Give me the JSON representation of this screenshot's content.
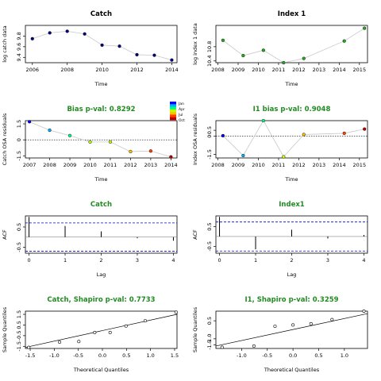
{
  "colors": {
    "green": "#228b22",
    "blue": "#0000cd",
    "dot_navy": "#00008b",
    "dot_green": "#22aa22",
    "legend": [
      "#0000ff",
      "#00b0ff",
      "#00ff80",
      "#c0ff00",
      "#ffc000",
      "#ff4000",
      "#c00000"
    ]
  },
  "legend_labels": [
    "Jan",
    "Apr",
    "Jul",
    "Oct"
  ],
  "chart_data": [
    {
      "id": "catch",
      "type": "line",
      "title": "Catch",
      "title_color": "black",
      "xlabel": "Time",
      "ylabel": "log catch data",
      "xlim": [
        2005.6,
        2014.3
      ],
      "ylim": [
        9.3,
        10.0
      ],
      "xticks": [
        2006,
        2008,
        2010,
        2012,
        2014
      ],
      "xtick_labels": [
        "2006",
        "2008",
        "2010",
        "2012",
        "2014"
      ],
      "yticks": [
        9.4,
        9.6,
        9.8
      ],
      "ytick_labels": [
        "9.4",
        "9.6",
        "9.8"
      ],
      "x": [
        2006,
        2007,
        2008,
        2009,
        2010,
        2011,
        2012,
        2013,
        2014
      ],
      "y": [
        9.75,
        9.86,
        9.89,
        9.84,
        9.63,
        9.61,
        9.45,
        9.44,
        9.35
      ],
      "point_color": "navy"
    },
    {
      "id": "index1",
      "type": "line",
      "title": "Index 1",
      "title_color": "black",
      "xlabel": "Time",
      "ylabel": "log index 1 data",
      "xlim": [
        2007.9,
        2015.4
      ],
      "ylim": [
        10.35,
        11.4
      ],
      "xticks": [
        2008,
        2009,
        2010,
        2011,
        2012,
        2013,
        2014,
        2015
      ],
      "xtick_labels": [
        "2008",
        "2009",
        "2010",
        "2011",
        "2012",
        "2013",
        "2014",
        "2015"
      ],
      "yticks": [
        10.4,
        10.8
      ],
      "ytick_labels": [
        "10.4",
        "10.8"
      ],
      "x": [
        2008.25,
        2009.25,
        2010.25,
        2011.25,
        2012.25,
        2014.25,
        2015.25
      ],
      "y": [
        10.98,
        10.55,
        10.7,
        10.35,
        10.47,
        10.96,
        11.32
      ],
      "point_color": "green"
    },
    {
      "id": "bias_catch",
      "type": "line",
      "title": "Bias p-val: 0.8292",
      "title_color": "green",
      "xlabel": "Time",
      "ylabel": "Catch OSA residuals",
      "xlim": [
        2006.8,
        2014.3
      ],
      "ylim": [
        -1.7,
        1.8
      ],
      "xticks": [
        2007,
        2008,
        2009,
        2010,
        2011,
        2012,
        2013,
        2014
      ],
      "xtick_labels": [
        "2007",
        "2008",
        "2009",
        "2010",
        "2011",
        "2012",
        "2013",
        "2014"
      ],
      "yticks": [
        -1.5,
        0,
        1.5
      ],
      "ytick_labels": [
        "-1.5",
        "0",
        "1.5"
      ],
      "x": [
        2007,
        2008,
        2009,
        2010,
        2011,
        2012,
        2013,
        2014
      ],
      "y": [
        1.7,
        0.9,
        0.4,
        -0.2,
        -0.2,
        -1.1,
        -1.05,
        -1.6
      ],
      "point_color": "legend",
      "hline": 0
    },
    {
      "id": "bias_i1",
      "type": "line",
      "title": "I1 bias p-val: 0.9048",
      "title_color": "green",
      "xlabel": "Time",
      "ylabel": "Index OSA residuals",
      "xlim": [
        2007.9,
        2015.4
      ],
      "ylim": [
        -1.8,
        1.3
      ],
      "xticks": [
        2008,
        2009,
        2010,
        2011,
        2012,
        2013,
        2014,
        2015
      ],
      "xtick_labels": [
        "2008",
        "2009",
        "2010",
        "2011",
        "2012",
        "2013",
        "2014",
        "2015"
      ],
      "yticks": [
        -1.5,
        0,
        0.5
      ],
      "ytick_labels": [
        "-1.5",
        "0",
        "0.5"
      ],
      "x": [
        2008.25,
        2009.25,
        2010.25,
        2011.25,
        2012.25,
        2014.25,
        2015.25
      ],
      "y": [
        0.05,
        -1.6,
        1.3,
        -1.7,
        0.15,
        0.25,
        0.6
      ],
      "point_color": "legend",
      "hline": 0
    },
    {
      "id": "acf_catch",
      "type": "bar",
      "title": "Catch",
      "title_color": "green",
      "xlabel": "Lag",
      "ylabel": "ACF",
      "xlim": [
        -0.1,
        4.1
      ],
      "ylim": [
        -0.8,
        1.05
      ],
      "xticks": [
        0,
        1,
        2,
        3,
        4
      ],
      "xtick_labels": [
        "0",
        "1",
        "2",
        "3",
        "4"
      ],
      "yticks": [
        -0.5,
        0.5
      ],
      "ytick_labels": [
        "-0.5",
        "0.5"
      ],
      "x": [
        0,
        1,
        2,
        3,
        4
      ],
      "y": [
        1.0,
        0.55,
        0.28,
        -0.06,
        -0.18
      ],
      "ci": 0.7
    },
    {
      "id": "acf_i1",
      "type": "bar",
      "title": "Index1",
      "title_color": "green",
      "xlabel": "Lag",
      "ylabel": "ACF",
      "xlim": [
        -0.1,
        4.1
      ],
      "ylim": [
        -0.85,
        1.05
      ],
      "xticks": [
        0,
        1,
        2,
        3,
        4
      ],
      "xtick_labels": [
        "0",
        "1",
        "2",
        "3",
        "4"
      ],
      "yticks": [
        -0.5,
        0.5
      ],
      "ytick_labels": [
        "-0.5",
        "0.5"
      ],
      "x": [
        0,
        1,
        2,
        3,
        4
      ],
      "y": [
        1.0,
        -0.65,
        0.35,
        -0.1,
        0.08
      ],
      "ci": 0.74
    },
    {
      "id": "qq_catch",
      "type": "scatter",
      "title": "Catch, Shapiro p-val: 0.7733",
      "title_color": "green",
      "xlabel": "Theoretical Quantiles",
      "ylabel": "Sample Quantiles",
      "xlim": [
        -1.6,
        1.55
      ],
      "ylim": [
        -1.7,
        1.8
      ],
      "xticks": [
        -1.5,
        -1,
        -0.5,
        0,
        0.5,
        1,
        1.5
      ],
      "xtick_labels": [
        "-1.5",
        "-1.0",
        "-0.5",
        "0.0",
        "0.5",
        "1.0",
        "1.5"
      ],
      "yticks": [
        -1.5,
        -0.5,
        0.5,
        1.5
      ],
      "ytick_labels": [
        "-1.5",
        "-0.5",
        "0.5",
        "1.5"
      ],
      "x": [
        -1.53,
        -0.89,
        -0.49,
        -0.16,
        0.16,
        0.49,
        0.89,
        1.53
      ],
      "y": [
        -1.6,
        -1.1,
        -1.05,
        -0.2,
        -0.2,
        0.4,
        0.9,
        1.7
      ],
      "line": [
        [
          -1.6,
          -1.6
        ],
        [
          1.55,
          1.5
        ]
      ]
    },
    {
      "id": "qq_i1",
      "type": "scatter",
      "title": "I1, Shapiro p-val: 0.3259",
      "title_color": "green",
      "xlabel": "Theoretical Quantiles",
      "ylabel": "Sample Quantiles",
      "xlim": [
        -1.5,
        1.45
      ],
      "ylim": [
        -1.8,
        1.3
      ],
      "xticks": [
        -1,
        -0.5,
        0,
        0.5,
        1
      ],
      "xtick_labels": [
        "-1.0",
        "-0.5",
        "0.0",
        "0.5",
        "1.0"
      ],
      "yticks": [
        -1.5,
        -1.0,
        0.5
      ],
      "ytick_labels": [
        "-1.5",
        "-1.0",
        "0.5"
      ],
      "x": [
        -1.38,
        -0.76,
        -0.35,
        0,
        0.35,
        0.76,
        1.38
      ],
      "y": [
        -1.7,
        -1.6,
        0.05,
        0.15,
        0.25,
        0.6,
        1.3
      ],
      "line": [
        [
          -1.5,
          -1.6
        ],
        [
          1.45,
          1.1
        ]
      ]
    }
  ]
}
